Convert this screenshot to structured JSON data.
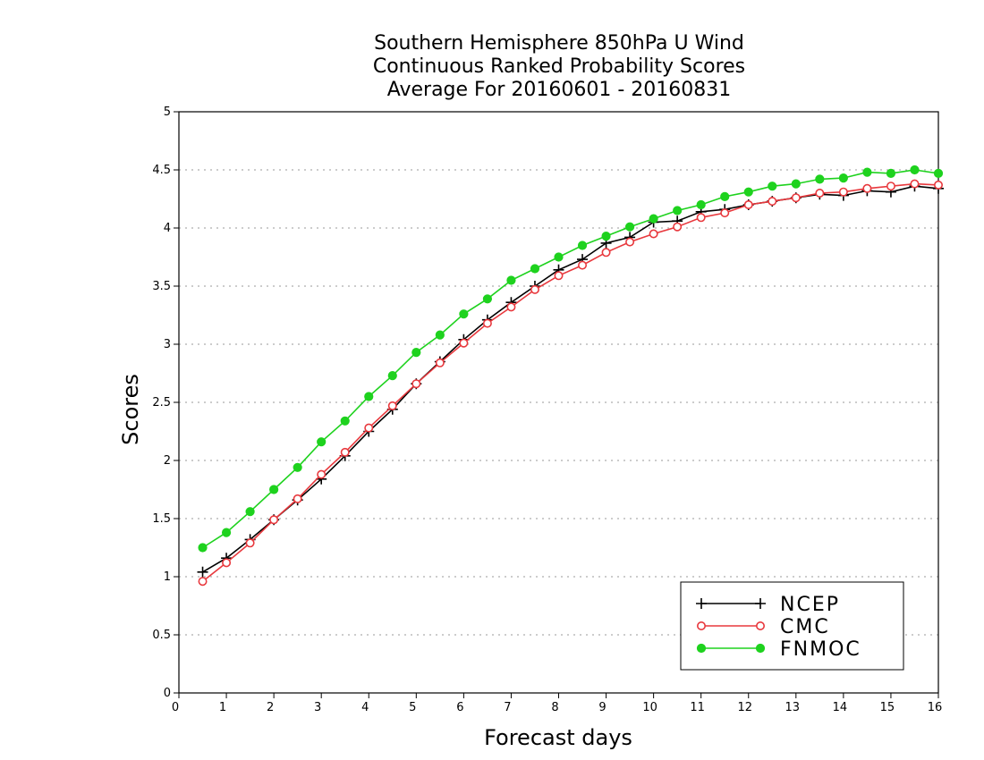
{
  "chart_data": {
    "type": "line",
    "title_lines": [
      "Southern Hemisphere 850hPa U Wind",
      "Continuous Ranked Probability Scores",
      "Average For 20160601 - 20160831"
    ],
    "xlabel": "Forecast days",
    "ylabel": "Scores",
    "xlim": [
      0,
      16
    ],
    "ylim": [
      0,
      5
    ],
    "xticks": [
      0,
      1,
      2,
      3,
      4,
      5,
      6,
      7,
      8,
      9,
      10,
      11,
      12,
      13,
      14,
      15,
      16
    ],
    "yticks": [
      0,
      0.5,
      1,
      1.5,
      2,
      2.5,
      3,
      3.5,
      4,
      4.5,
      5
    ],
    "ytick_labels": [
      "0",
      "0.5",
      "1",
      "1.5",
      "2",
      "2.5",
      "3",
      "3.5",
      "4",
      "4.5",
      "5"
    ],
    "grid": "horizontal-dotted",
    "legend_position": "bottom-right",
    "x": [
      0.5,
      1,
      1.5,
      2,
      2.5,
      3,
      3.5,
      4,
      4.5,
      5,
      5.5,
      6,
      6.5,
      7,
      7.5,
      8,
      8.5,
      9,
      9.5,
      10,
      10.5,
      11,
      11.5,
      12,
      12.5,
      13,
      13.5,
      14,
      14.5,
      15,
      15.5,
      16
    ],
    "series": [
      {
        "name": "NCEP",
        "color": "#000000",
        "marker": "plus",
        "values": [
          1.04,
          1.16,
          1.32,
          1.49,
          1.66,
          1.84,
          2.04,
          2.25,
          2.44,
          2.66,
          2.85,
          3.04,
          3.21,
          3.36,
          3.5,
          3.64,
          3.73,
          3.87,
          3.92,
          4.05,
          4.06,
          4.14,
          4.16,
          4.2,
          4.23,
          4.26,
          4.29,
          4.28,
          4.32,
          4.31,
          4.36,
          4.34
        ]
      },
      {
        "name": "CMC",
        "color": "#e8383d",
        "marker": "open-circle",
        "values": [
          0.96,
          1.12,
          1.29,
          1.49,
          1.67,
          1.88,
          2.07,
          2.28,
          2.47,
          2.66,
          2.84,
          3.01,
          3.18,
          3.32,
          3.47,
          3.59,
          3.68,
          3.79,
          3.88,
          3.95,
          4.01,
          4.09,
          4.13,
          4.2,
          4.23,
          4.26,
          4.3,
          4.31,
          4.34,
          4.36,
          4.38,
          4.37
        ]
      },
      {
        "name": "FNMOC",
        "color": "#1ed21e",
        "marker": "filled-circle",
        "values": [
          1.25,
          1.38,
          1.56,
          1.75,
          1.94,
          2.16,
          2.34,
          2.55,
          2.73,
          2.93,
          3.08,
          3.26,
          3.39,
          3.55,
          3.65,
          3.75,
          3.85,
          3.93,
          4.01,
          4.08,
          4.15,
          4.2,
          4.27,
          4.31,
          4.36,
          4.38,
          4.42,
          4.43,
          4.48,
          4.47,
          4.5,
          4.47
        ]
      }
    ]
  }
}
